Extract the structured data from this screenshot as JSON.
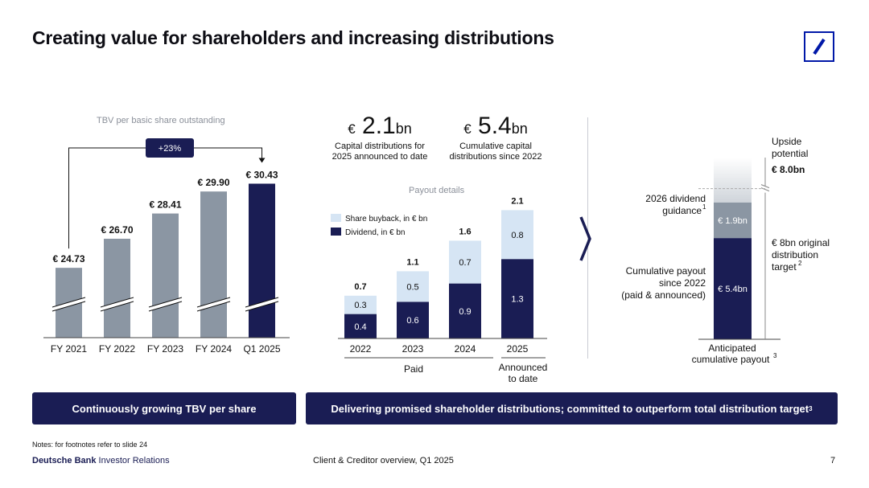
{
  "title": "Creating value for shareholders and increasing distributions",
  "colors": {
    "navy": "#1a1d54",
    "gray": "#8b96a3",
    "light_blue": "#d6e5f4",
    "brand_blue": "#0018a8"
  },
  "left_panel": {
    "subtitle": "TBV per basic share outstanding",
    "growth_label": "+23%"
  },
  "stats": [
    {
      "currency": "€",
      "value": "2.1",
      "unit": "bn",
      "caption_line1": "Capital distributions for",
      "caption_line2": "2025 announced to date"
    },
    {
      "currency": "€",
      "value": "5.4",
      "unit": "bn",
      "caption_line1": "Cumulative capital",
      "caption_line2": "distributions since 2022"
    }
  ],
  "middle_panel": {
    "subtitle": "Payout details",
    "paid_label": "Paid",
    "announced_line1": "Announced",
    "announced_line2": "to date"
  },
  "right_panel": {
    "upside_line1": "Upside",
    "upside_line2": "potential",
    "target_label": "€ 8.0bn",
    "original_line1": "€ 8bn original",
    "original_line2": "distribution",
    "original_line3": "target",
    "original_sup": "2",
    "guidance_line1": "2026 dividend",
    "guidance_line2": "guidance",
    "guidance_sup": "1",
    "cumulative_line1": "Cumulative payout",
    "cumulative_line2": "since 2022",
    "cumulative_line3": "(paid & announced)",
    "anticipated_line1": "Anticipated",
    "anticipated_line2": "cumulative payout",
    "anticipated_sup": "3"
  },
  "banners": {
    "left": "Continuously growing TBV per share",
    "right": "Delivering promised shareholder distributions; committed to outperform total distribution target",
    "right_sup": "3"
  },
  "footer": {
    "notes": "Notes: for footnotes refer to slide 24",
    "brand_bold": "Deutsche Bank",
    "brand_rest": " Investor Relations",
    "center": "Client & Creditor overview, Q1 2025",
    "page": "7"
  },
  "chart_data": [
    {
      "type": "bar",
      "title": "TBV per basic share outstanding",
      "categories": [
        "FY 2021",
        "FY 2022",
        "FY 2023",
        "FY 2024",
        "Q1 2025"
      ],
      "values": [
        24.73,
        26.7,
        28.41,
        29.9,
        30.43
      ],
      "data_labels": [
        "€ 24.73",
        "€ 26.70",
        "€ 28.41",
        "€ 29.90",
        "€ 30.43"
      ],
      "highlight_last": true,
      "axis_break": true,
      "ylim": [
        20,
        31
      ]
    },
    {
      "type": "bar",
      "stacked": true,
      "title": "Payout details",
      "categories": [
        "2022",
        "2023",
        "2024",
        "2025"
      ],
      "series": [
        {
          "name": "Dividend, in € bn",
          "values": [
            0.4,
            0.6,
            0.9,
            1.3
          ],
          "labels": [
            "0.4",
            "0.6",
            "0.9",
            "1.3"
          ]
        },
        {
          "name": "Share buyback, in € bn",
          "values": [
            0.3,
            0.5,
            0.7,
            0.8
          ],
          "labels": [
            "0.3",
            "0.5",
            "0.7",
            "0.8"
          ]
        }
      ],
      "totals": [
        "0.7",
        "1.1",
        "1.6",
        "2.1"
      ],
      "ylim": [
        0,
        2.1
      ]
    },
    {
      "type": "bar",
      "stacked": true,
      "title": "Anticipated cumulative payout",
      "categories": [
        "Anticipated cumulative payout"
      ],
      "series": [
        {
          "name": "Cumulative payout since 2022 (paid & announced)",
          "values": [
            5.4
          ],
          "labels": [
            "€ 5.4bn"
          ]
        },
        {
          "name": "2026 dividend guidance",
          "values": [
            1.9
          ],
          "labels": [
            "€ 1.9bn"
          ]
        },
        {
          "name": "Upside potential",
          "values": [
            2.4
          ]
        }
      ],
      "target": 8.0,
      "ylim": [
        0,
        9.7
      ]
    }
  ]
}
